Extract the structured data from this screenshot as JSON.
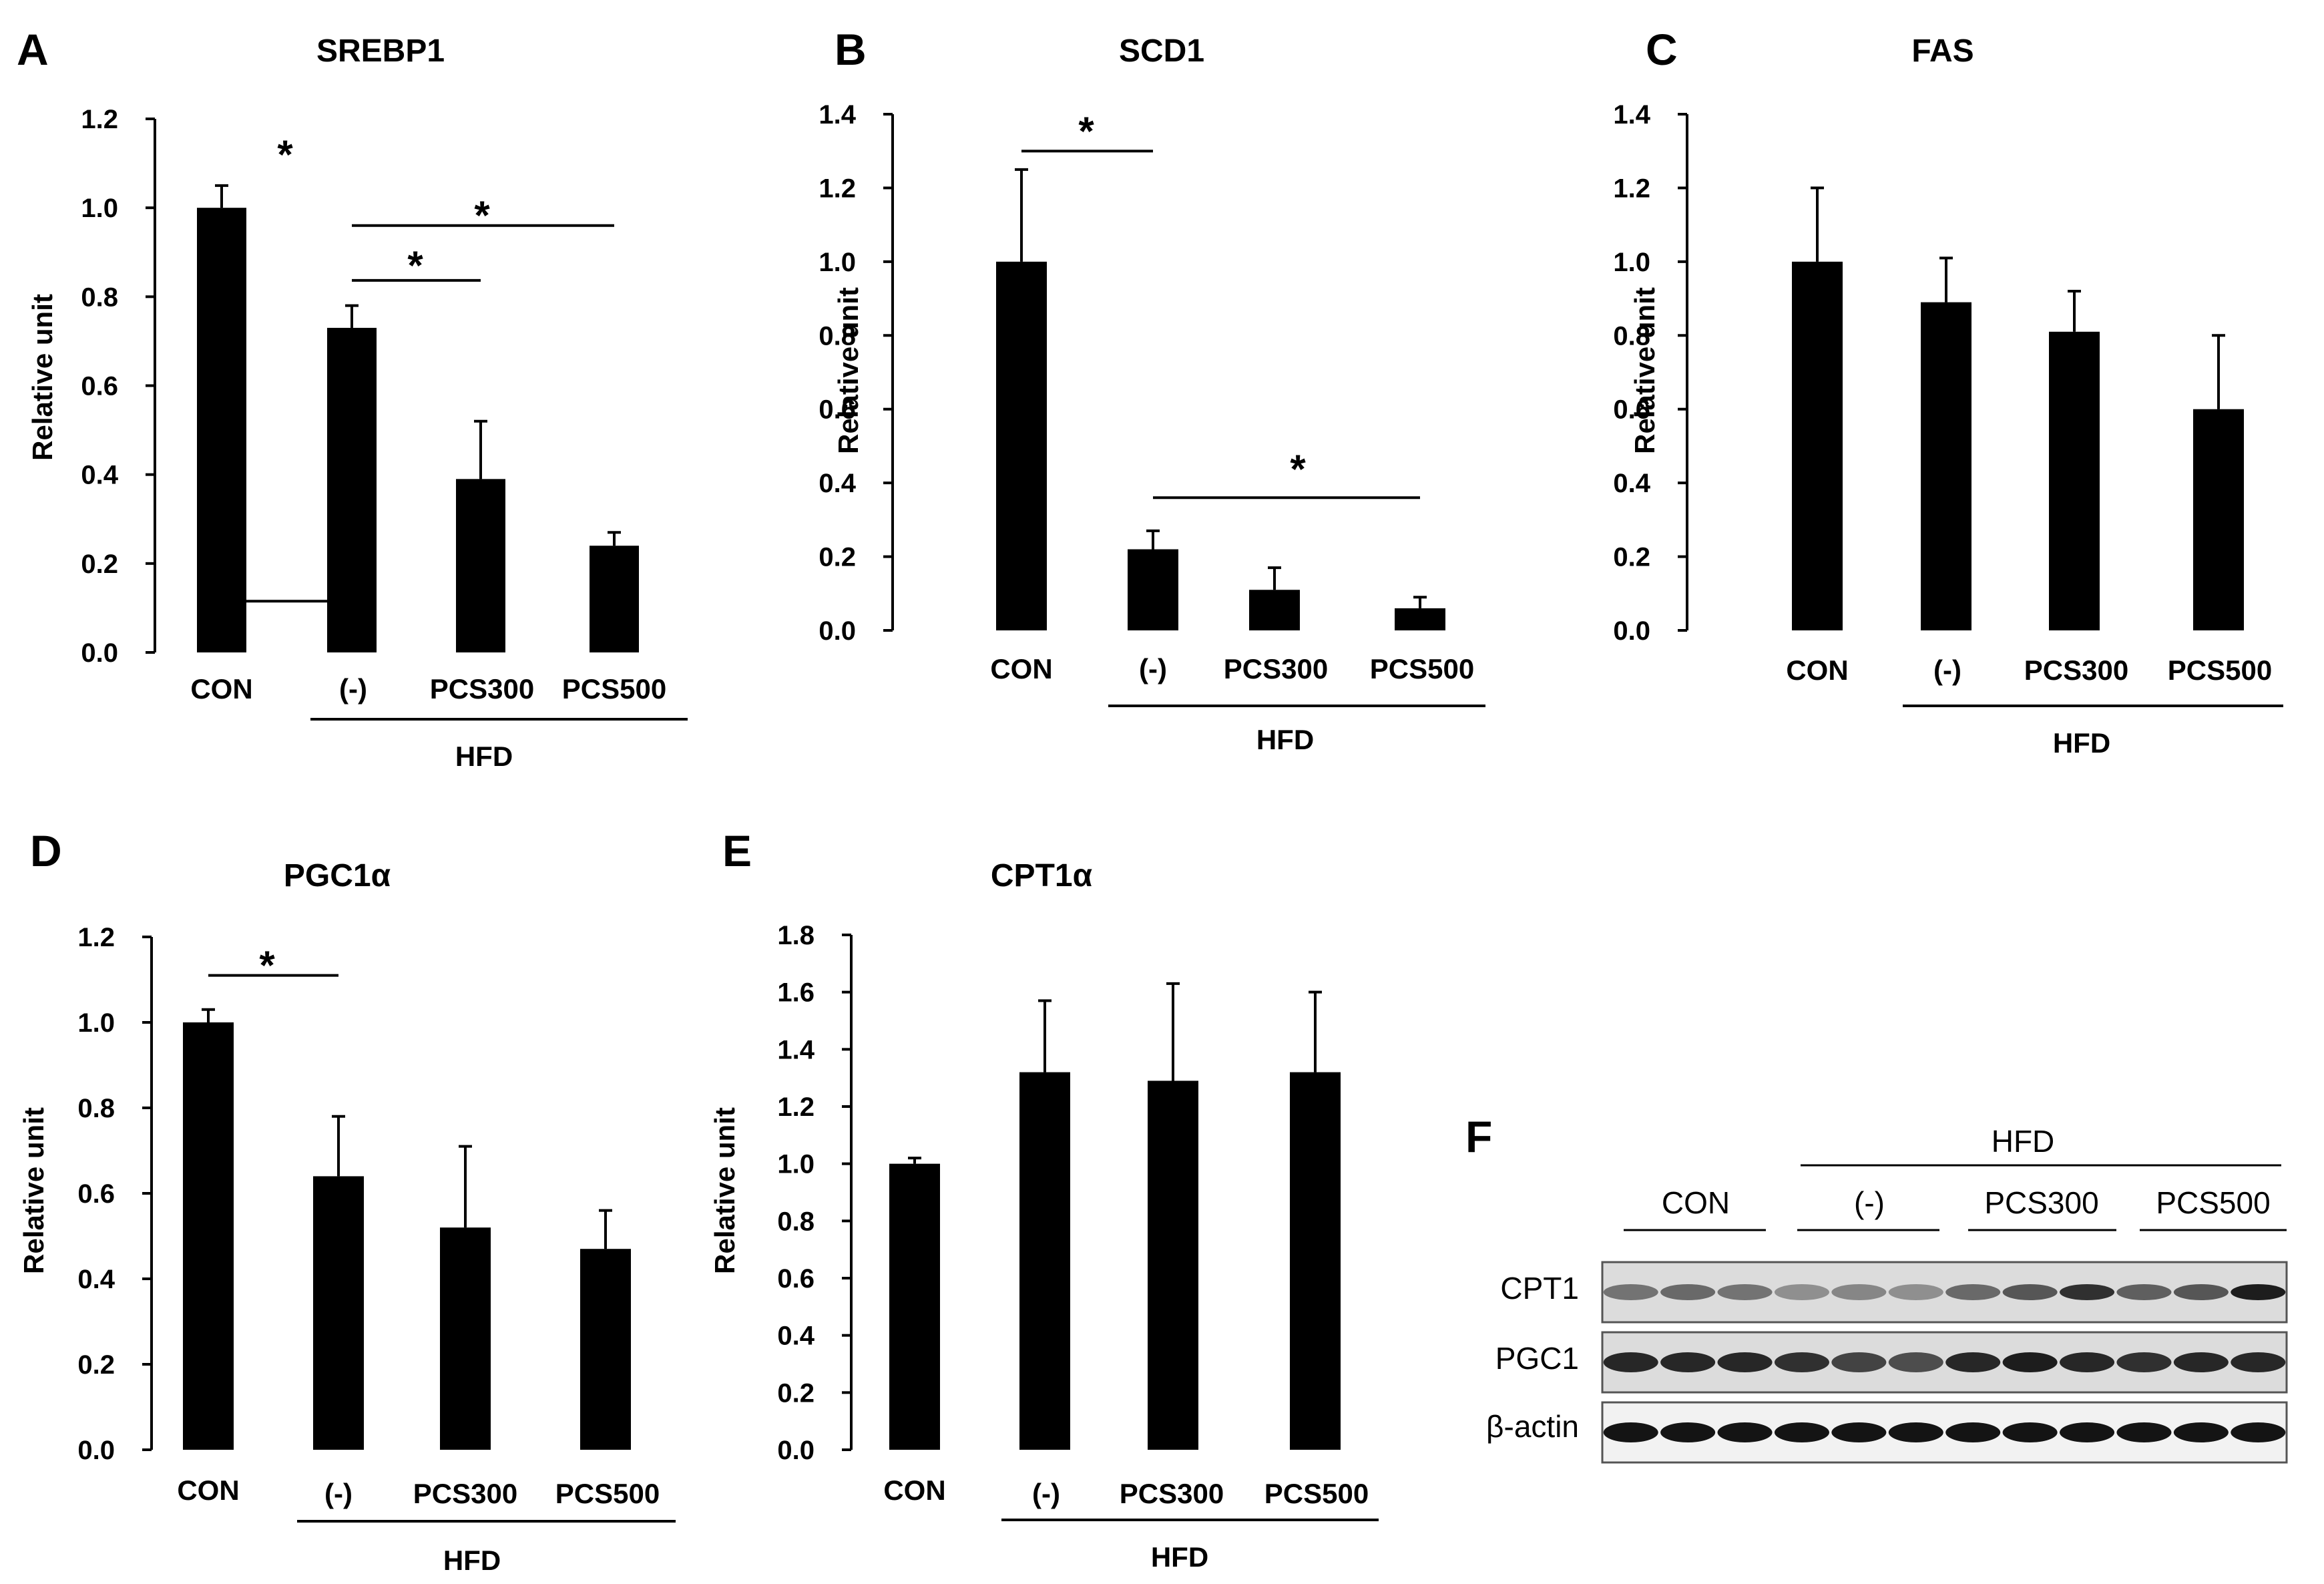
{
  "chart_data": [
    {
      "id": "A",
      "panel_label": "A",
      "type": "bar",
      "title": "SREBP1",
      "ylabel": "Relative unit",
      "ylim": [
        0,
        1.2
      ],
      "yticks": [
        "0.0",
        "0.2",
        "0.4",
        "0.6",
        "0.8",
        "1.0",
        "1.2"
      ],
      "categories": [
        "CON",
        "(-)",
        "PCS300",
        "PCS500"
      ],
      "values": [
        1.0,
        0.73,
        0.39,
        0.24
      ],
      "errors": [
        0.05,
        0.05,
        0.13,
        0.03
      ],
      "group_label": "HFD",
      "group_start": 1,
      "group_end": 3,
      "significance": [
        {
          "from": 0,
          "to": 1,
          "level": 0.1153,
          "mark": "*"
        },
        {
          "from": 1,
          "to": 2,
          "level": 0.8368,
          "mark": "*"
        },
        {
          "from": 1,
          "to": 3,
          "level": 0.9601,
          "mark": "*"
        }
      ]
    },
    {
      "id": "B",
      "panel_label": "B",
      "type": "bar",
      "title": "SCD1",
      "ylabel": "Relative unit",
      "ylim": [
        0,
        1.4
      ],
      "yticks": [
        "0.0",
        "0.2",
        "0.4",
        "0.6",
        "0.8",
        "1.0",
        "1.2",
        "1.4"
      ],
      "categories": [
        "CON",
        "(-)",
        "PCS300",
        "PCS500"
      ],
      "values": [
        1.0,
        0.22,
        0.11,
        0.06
      ],
      "errors": [
        0.25,
        0.05,
        0.06,
        0.03
      ],
      "group_label": "HFD",
      "group_start": 1,
      "group_end": 3,
      "significance": [
        {
          "from": 0,
          "to": 1,
          "level": 1.3,
          "mark": "*"
        },
        {
          "from": 1,
          "to": 3,
          "level": 0.36,
          "mark": "*"
        }
      ]
    },
    {
      "id": "C",
      "panel_label": "C",
      "type": "bar",
      "title": "FAS",
      "ylabel": "Relative unit",
      "ylim": [
        0,
        1.4
      ],
      "yticks": [
        "0.0",
        "0.2",
        "0.4",
        "0.6",
        "0.8",
        "1.0",
        "1.2",
        "1.4"
      ],
      "categories": [
        "CON",
        "(-)",
        "PCS300",
        "PCS500"
      ],
      "values": [
        1.0,
        0.89,
        0.81,
        0.6
      ],
      "errors": [
        0.2,
        0.12,
        0.11,
        0.2
      ],
      "group_label": "HFD",
      "group_start": 1,
      "group_end": 3,
      "significance": []
    },
    {
      "id": "D",
      "panel_label": "D",
      "type": "bar",
      "title": "PGC1α",
      "ylabel": "Relative unit",
      "ylim": [
        0,
        1.2
      ],
      "yticks": [
        "0.0",
        "0.2",
        "0.4",
        "0.6",
        "0.8",
        "1.0",
        "1.2"
      ],
      "categories": [
        "CON",
        "(-)",
        "PCS300",
        "PCS500"
      ],
      "values": [
        1.0,
        0.64,
        0.52,
        0.47
      ],
      "errors": [
        0.03,
        0.14,
        0.19,
        0.09
      ],
      "group_label": "HFD",
      "group_start": 1,
      "group_end": 3,
      "significance": [
        {
          "from": 0,
          "to": 1,
          "level": 1.11,
          "mark": "*"
        }
      ]
    },
    {
      "id": "E",
      "panel_label": "E",
      "type": "bar",
      "title": "CPT1α",
      "ylabel": "Relative unit",
      "ylim": [
        0,
        1.8
      ],
      "yticks": [
        "0.0",
        "0.2",
        "0.4",
        "0.6",
        "0.8",
        "1.0",
        "1.2",
        "1.4",
        "1.6",
        "1.8"
      ],
      "categories": [
        "CON",
        "(-)",
        "PCS300",
        "PCS500"
      ],
      "values": [
        1.0,
        1.32,
        1.29,
        1.32
      ],
      "errors": [
        0.02,
        0.25,
        0.34,
        0.28
      ],
      "group_label": "HFD",
      "group_start": 1,
      "group_end": 3,
      "significance": []
    }
  ],
  "blot": {
    "panel_label": "F",
    "group_label": "HFD",
    "group_start": 1,
    "group_end": 3,
    "lane_groups": [
      "CON",
      "(-)",
      "PCS300",
      "PCS500"
    ],
    "rows": [
      {
        "name": "CPT1",
        "intensity": [
          0.45,
          0.5,
          0.45,
          0.3,
          0.35,
          0.3,
          0.5,
          0.6,
          0.8,
          0.55,
          0.6,
          0.9
        ]
      },
      {
        "name": "PGC1",
        "intensity": [
          0.85,
          0.85,
          0.85,
          0.8,
          0.7,
          0.65,
          0.85,
          0.9,
          0.85,
          0.8,
          0.85,
          0.85
        ]
      },
      {
        "name": "β-actin",
        "intensity": [
          0.95,
          0.95,
          0.95,
          0.95,
          0.95,
          0.95,
          0.95,
          0.95,
          0.95,
          0.95,
          0.95,
          0.95
        ]
      }
    ]
  }
}
